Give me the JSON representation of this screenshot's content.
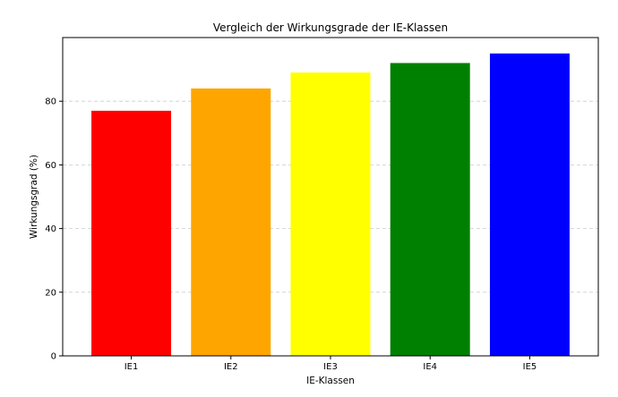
{
  "chart_data": {
    "type": "bar",
    "title": "Vergleich der Wirkungsgrade der IE-Klassen",
    "xlabel": "IE-Klassen",
    "ylabel": "Wirkungsgrad (%)",
    "categories": [
      "IE1",
      "IE2",
      "IE3",
      "IE4",
      "IE5"
    ],
    "values": [
      77,
      84,
      89,
      92,
      95
    ],
    "colors": [
      "#ff0000",
      "#ffa500",
      "#ffff00",
      "#008000",
      "#0000ff"
    ],
    "ylim": [
      0,
      100
    ],
    "yticks": [
      0,
      20,
      40,
      60,
      80
    ],
    "grid": "y-dashed",
    "legend": "none"
  }
}
